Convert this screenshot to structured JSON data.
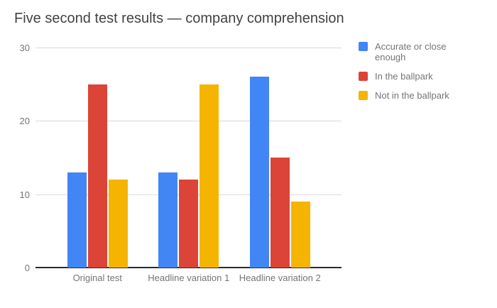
{
  "page": {
    "background": "#ffffff"
  },
  "chart_data": {
    "type": "bar",
    "title": "Five second test results — company comprehension",
    "categories": [
      "Original test",
      "Headline variation 1",
      "Headline variation 2"
    ],
    "series": [
      {
        "name": "Accurate or close enough",
        "color": "#4285F4",
        "values": [
          13,
          13,
          26
        ]
      },
      {
        "name": "In the ballpark",
        "color": "#DB4437",
        "values": [
          25,
          12,
          15
        ]
      },
      {
        "name": "Not in the ballpark",
        "color": "#F4B400",
        "values": [
          12,
          25,
          9
        ]
      }
    ],
    "xlabel": "",
    "ylabel": "",
    "ylim": [
      0,
      30
    ],
    "yticks": [
      0,
      10,
      20,
      30
    ],
    "grid": true,
    "legend_position": "right",
    "styles": {
      "title_color": "#424242",
      "axis_label_color": "#757575",
      "gridline_color": "#dadada",
      "baseline_color": "#2b2b2b"
    }
  }
}
